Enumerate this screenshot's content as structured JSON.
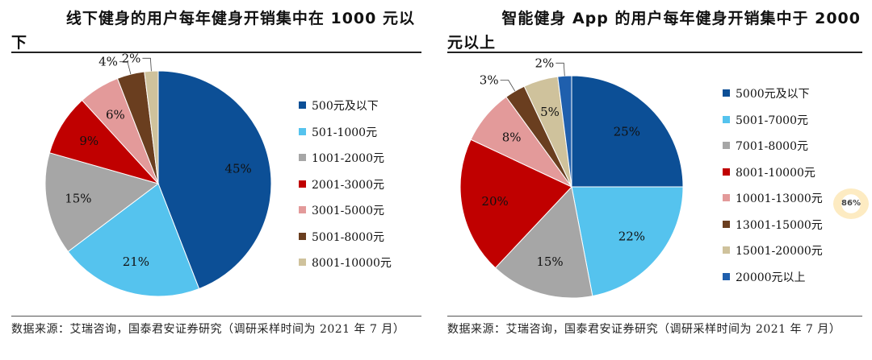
{
  "chart_data": [
    {
      "type": "pie",
      "title_line1": "线下健身的用户每年健身开销集中在 1000 元以",
      "title_line2": "下",
      "categories": [
        "500元及以下",
        "501-1000元",
        "1001-2000元",
        "2001-3000元",
        "3001-5000元",
        "5001-8000元",
        "8001-10000元"
      ],
      "values": [
        45,
        21,
        15,
        9,
        6,
        4,
        2
      ],
      "labels": [
        "45%",
        "21%",
        "15%",
        "9%",
        "6%",
        "4%",
        "2%"
      ],
      "colors": [
        "#0c4f96",
        "#55c3ee",
        "#a6a6a6",
        "#c00000",
        "#e39a9a",
        "#6a3e1f",
        "#cfc29c"
      ],
      "legend_position": "right",
      "source": "数据来源：艾瑞咨询，国泰君安证券研究（调研采样时间为 2021 年 7 月）"
    },
    {
      "type": "pie",
      "title_line1": "智能健身 App 的用户每年健身开销集中于 2000",
      "title_line2": "元以上",
      "categories": [
        "5000元及以下",
        "5001-7000元",
        "7001-8000元",
        "8001-10000元",
        "10001-13000元",
        "13001-15000元",
        "15001-20000元",
        "20000元以上"
      ],
      "values": [
        25,
        22,
        15,
        20,
        8,
        3,
        5,
        2
      ],
      "labels": [
        "25%",
        "22%",
        "15%",
        "20%",
        "8%",
        "3%",
        "5%",
        "2%"
      ],
      "colors": [
        "#0c4f96",
        "#55c3ee",
        "#a6a6a6",
        "#c00000",
        "#e39a9a",
        "#6a3e1f",
        "#cfc29c",
        "#1f5fad"
      ],
      "legend_position": "right",
      "source": "数据来源：艾瑞咨询，国泰君安证券研究（调研采样时间为 2021 年 7 月）"
    }
  ],
  "badge": {
    "text": "86%"
  }
}
